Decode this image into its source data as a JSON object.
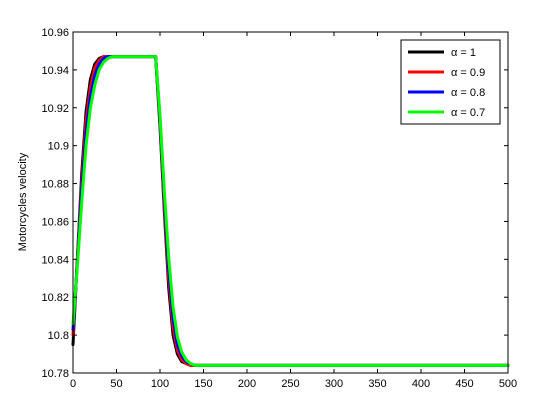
{
  "chart_data": {
    "type": "line",
    "title": "",
    "xlabel": "",
    "ylabel": "Motorcycles velocity",
    "xlim": [
      0,
      500
    ],
    "ylim": [
      10.78,
      10.96
    ],
    "xticks": [
      0,
      50,
      100,
      150,
      200,
      250,
      300,
      350,
      400,
      450,
      500
    ],
    "yticks": [
      10.78,
      10.8,
      10.82,
      10.84,
      10.86,
      10.88,
      10.9,
      10.92,
      10.94,
      10.96
    ],
    "xtick_labels": [
      "0",
      "50",
      "100",
      "150",
      "200",
      "250",
      "300",
      "350",
      "400",
      "450",
      "500"
    ],
    "ytick_labels": [
      "10.78",
      "10.8",
      "10.82",
      "10.84",
      "10.86",
      "10.88",
      "10.9",
      "10.92",
      "10.94",
      "10.96"
    ],
    "grid": false,
    "legend_position": "top-right",
    "series": [
      {
        "name": "α = 1",
        "color": "#000000",
        "x": [
          0,
          5,
          10,
          15,
          20,
          25,
          30,
          35,
          40,
          45,
          50,
          60,
          70,
          80,
          90,
          95,
          100,
          105,
          110,
          115,
          120,
          125,
          130,
          135,
          140,
          150,
          200,
          300,
          400,
          490,
          500
        ],
        "y": [
          10.795,
          10.84,
          10.885,
          10.918,
          10.935,
          10.943,
          10.946,
          10.947,
          10.947,
          10.947,
          10.947,
          10.947,
          10.947,
          10.947,
          10.947,
          10.947,
          10.91,
          10.865,
          10.825,
          10.8,
          10.79,
          10.786,
          10.785,
          10.784,
          10.784,
          10.784,
          10.784,
          10.784,
          10.784,
          10.784,
          10.784
        ]
      },
      {
        "name": "α = 0.9",
        "color": "#ff0000",
        "x": [
          0,
          5,
          10,
          15,
          20,
          25,
          30,
          35,
          40,
          45,
          50,
          60,
          70,
          80,
          90,
          95,
          100,
          105,
          110,
          115,
          120,
          125,
          130,
          135,
          140,
          150,
          200,
          300,
          400,
          490,
          500
        ],
        "y": [
          10.8,
          10.84,
          10.88,
          10.913,
          10.931,
          10.941,
          10.945,
          10.947,
          10.947,
          10.947,
          10.947,
          10.947,
          10.947,
          10.947,
          10.947,
          10.947,
          10.912,
          10.868,
          10.83,
          10.804,
          10.792,
          10.787,
          10.785,
          10.784,
          10.784,
          10.784,
          10.784,
          10.784,
          10.784,
          10.784,
          10.784
        ]
      },
      {
        "name": "α = 0.8",
        "color": "#0000ff",
        "x": [
          0,
          5,
          10,
          15,
          20,
          25,
          30,
          35,
          40,
          45,
          50,
          60,
          70,
          80,
          90,
          95,
          100,
          105,
          110,
          115,
          120,
          125,
          130,
          135,
          140,
          150,
          200,
          300,
          400,
          490,
          500
        ],
        "y": [
          10.803,
          10.838,
          10.876,
          10.907,
          10.926,
          10.937,
          10.943,
          10.946,
          10.947,
          10.947,
          10.947,
          10.947,
          10.947,
          10.947,
          10.947,
          10.947,
          10.914,
          10.872,
          10.835,
          10.809,
          10.795,
          10.789,
          10.786,
          10.785,
          10.784,
          10.784,
          10.784,
          10.784,
          10.784,
          10.784,
          10.784
        ]
      },
      {
        "name": "α = 0.7",
        "color": "#00ff00",
        "x": [
          0,
          5,
          10,
          15,
          20,
          25,
          30,
          35,
          40,
          45,
          50,
          60,
          70,
          80,
          90,
          95,
          100,
          105,
          110,
          115,
          120,
          125,
          130,
          135,
          140,
          150,
          200,
          300,
          400,
          490,
          500
        ],
        "y": [
          10.806,
          10.836,
          10.87,
          10.9,
          10.92,
          10.932,
          10.94,
          10.944,
          10.946,
          10.947,
          10.947,
          10.947,
          10.947,
          10.947,
          10.947,
          10.947,
          10.916,
          10.876,
          10.841,
          10.815,
          10.799,
          10.791,
          10.787,
          10.785,
          10.784,
          10.784,
          10.784,
          10.784,
          10.784,
          10.784,
          10.784
        ]
      }
    ]
  }
}
